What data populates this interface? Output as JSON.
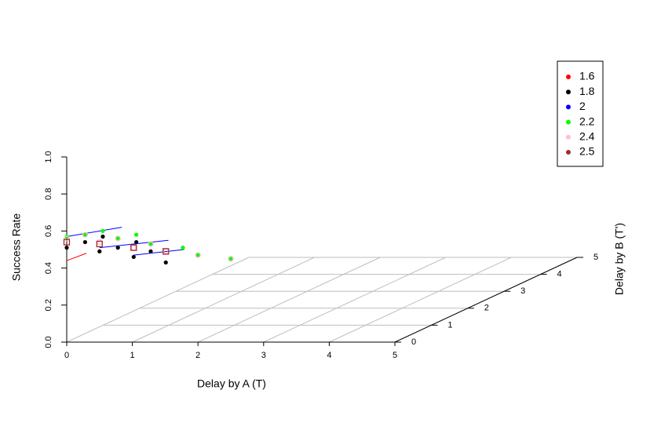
{
  "chart_data": {
    "type": "scatter3d",
    "xlabel": "Delay by A (T)",
    "ylabel": "Delay by B (T')",
    "zlabel": "Success Rate",
    "xlim": [
      0,
      5
    ],
    "xticks": [
      0,
      1,
      2,
      3,
      4,
      5
    ],
    "ylim": [
      0,
      5
    ],
    "yticks": [
      0,
      1,
      2,
      3,
      4,
      5
    ],
    "zlim": [
      0,
      1
    ],
    "zticks": [
      {
        "value": 0,
        "label": "0.0"
      },
      0.2,
      0.4,
      0.6,
      0.8,
      {
        "value": 1,
        "label": "1.0"
      }
    ],
    "grid": true,
    "legend": "top-right",
    "series": [
      {
        "name": "1.6",
        "color": "#ff0000",
        "style": "line",
        "x": [
          0,
          0.3
        ],
        "z": [
          0.44,
          0.48
        ]
      },
      {
        "name": "1.8",
        "color": "#000000",
        "style": "point",
        "x": [
          0,
          0.28,
          0.55,
          0.5,
          0.78,
          1.02,
          1.06,
          1.28,
          1.51
        ],
        "z": [
          0.51,
          0.54,
          0.57,
          0.49,
          0.51,
          0.46,
          0.54,
          0.49,
          0.43
        ]
      },
      {
        "name": "2",
        "color": "#0000ff",
        "style": "line",
        "x": [
          0,
          0.84,
          null,
          0.5,
          1.55,
          null,
          1.02,
          1.79
        ],
        "z": [
          0.57,
          0.62,
          null,
          0.51,
          0.55,
          null,
          0.47,
          0.5
        ]
      },
      {
        "name": "2.2",
        "color": "#00ff00",
        "style": "point",
        "x": [
          0,
          0.28,
          0.55,
          0.78,
          1.06,
          1.28,
          1.77,
          2.0,
          2.5
        ],
        "z": [
          0.57,
          0.58,
          0.6,
          0.56,
          0.58,
          0.53,
          0.51,
          0.47,
          0.45
        ]
      },
      {
        "name": "2.4",
        "color": "#ffc0cb",
        "style": "circle",
        "x": [
          0,
          0.28,
          0.5,
          0.78,
          1.02,
          1.28,
          1.51,
          2.0,
          2.5
        ],
        "z": [
          0.56,
          0.58,
          0.54,
          0.56,
          0.51,
          0.53,
          0.49,
          0.47,
          0.45
        ]
      },
      {
        "name": "2.5",
        "color": "#a52a2a",
        "style": "square",
        "x": [
          0,
          0.5,
          1.02,
          1.51
        ],
        "z": [
          0.54,
          0.53,
          0.51,
          0.49
        ]
      }
    ]
  }
}
